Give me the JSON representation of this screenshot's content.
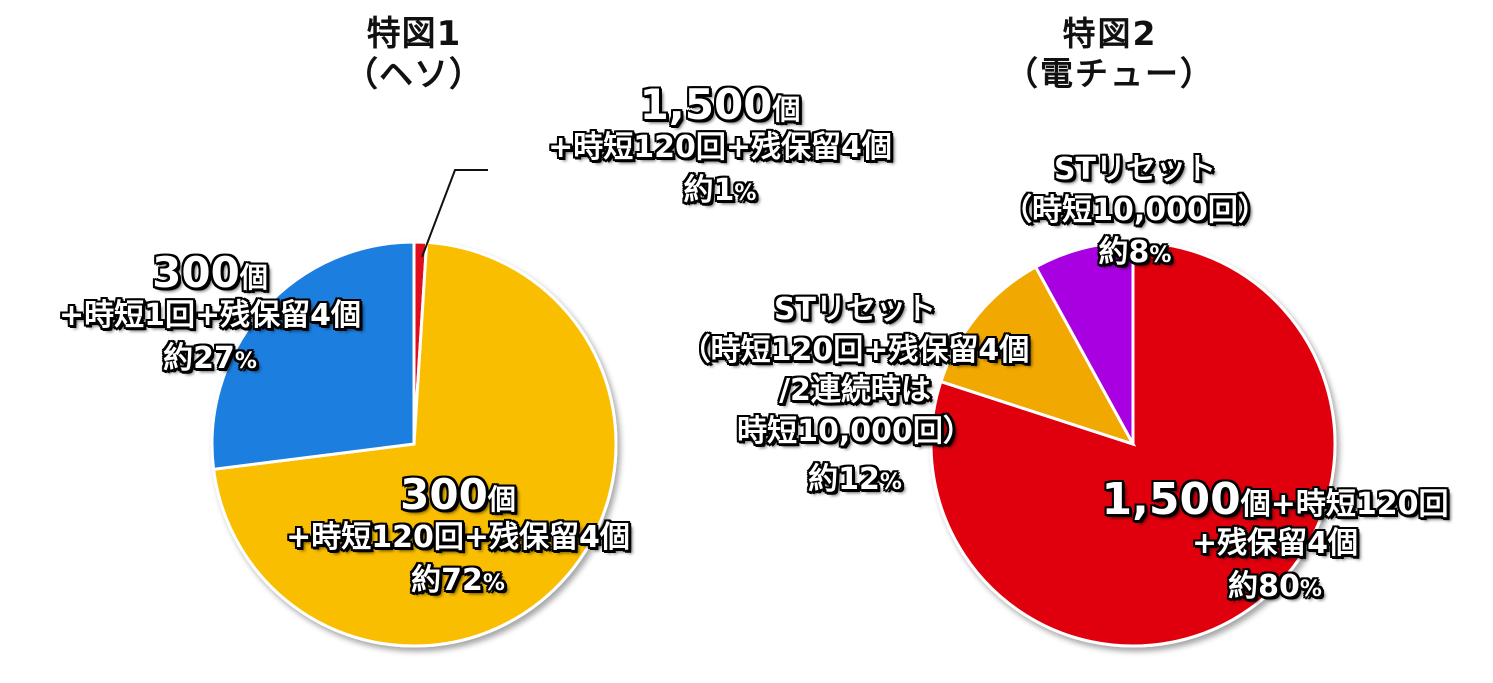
{
  "charts": [
    {
      "title_line1": "特図1",
      "title_line2": "（ヘソ）",
      "chart_data": {
        "type": "pie",
        "slices": [
          {
            "label_main": "1,500",
            "label_unit": "個",
            "label_detail": [
              "+時短120回+残保留4個"
            ],
            "percent_text": "約1",
            "value": 1,
            "color": "#e0101a"
          },
          {
            "label_main": "300",
            "label_unit": "個",
            "label_detail": [
              "+時短120回+残保留4個"
            ],
            "percent_text": "約72",
            "value": 72,
            "color": "#f9be00"
          },
          {
            "label_main": "300",
            "label_unit": "個",
            "label_detail": [
              "+時短1回+残保留4個"
            ],
            "percent_text": "約27",
            "value": 27,
            "color": "#1f7fe0"
          }
        ]
      }
    },
    {
      "title_line1": "特図2",
      "title_line2": "（電チュー）",
      "chart_data": {
        "type": "pie",
        "slices": [
          {
            "label_main": "1,500",
            "label_unit": "個+時短120回",
            "label_detail": [
              "+残保留4個"
            ],
            "percent_text": "約80",
            "value": 80,
            "color": "#e0000f"
          },
          {
            "label_main": "",
            "label_unit": "",
            "label_detail": [
              "STリセット",
              "（時短120回+残保留4個",
              "/2連続時は",
              "時短10,000回）"
            ],
            "percent_text": "約12",
            "value": 12,
            "color": "#f1a800"
          },
          {
            "label_main": "",
            "label_unit": "",
            "label_detail": [
              "STリセット",
              "（時短10,000回）"
            ],
            "percent_text": "約8",
            "value": 8,
            "color": "#a800e0"
          }
        ]
      }
    }
  ],
  "percent_sign": "%"
}
